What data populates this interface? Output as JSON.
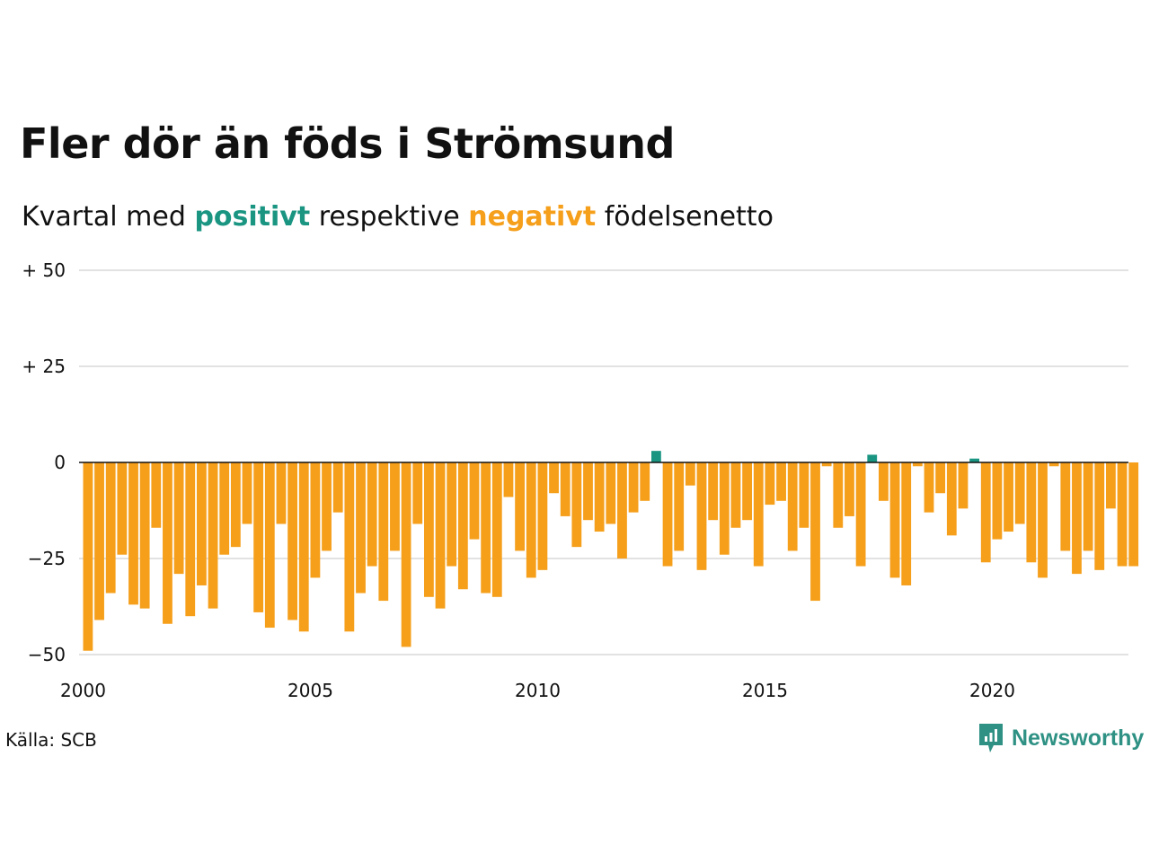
{
  "title": "Fler dör än föds i Strömsund",
  "subtitle": {
    "prefix": "Kvartal med",
    "positive_word": "positivt",
    "middle": "respektive",
    "negative_word": "negativt",
    "suffix": "födelsenetto"
  },
  "source": "Källa: SCB",
  "logo": {
    "text": "Newsworthy",
    "icon": "newsworthy-logo-icon"
  },
  "colors": {
    "positive": "#1a9582",
    "negative": "#f59f1b",
    "grid": "#e2e2e2",
    "zero_line": "#111111"
  },
  "chart_data": {
    "type": "bar",
    "title": "Fler dör än föds i Strömsund",
    "ylim": [
      -50,
      50
    ],
    "yticks": [
      {
        "value": 50,
        "label": "+ 50"
      },
      {
        "value": 25,
        "label": "+ 25"
      },
      {
        "value": 0,
        "label": "0"
      },
      {
        "value": -25,
        "label": "−25"
      },
      {
        "value": -50,
        "label": "−50"
      }
    ],
    "x_start": 2000,
    "xticks": [
      {
        "value": 2000,
        "label": "2000"
      },
      {
        "value": 2005,
        "label": "2005"
      },
      {
        "value": 2010,
        "label": "2010"
      },
      {
        "value": 2015,
        "label": "2015"
      },
      {
        "value": 2020,
        "label": "2020"
      }
    ],
    "grid": true,
    "categories": [
      "2000 Q1",
      "2000 Q2",
      "2000 Q3",
      "2000 Q4",
      "2001 Q1",
      "2001 Q2",
      "2001 Q3",
      "2001 Q4",
      "2002 Q1",
      "2002 Q2",
      "2002 Q3",
      "2002 Q4",
      "2003 Q1",
      "2003 Q2",
      "2003 Q3",
      "2003 Q4",
      "2004 Q1",
      "2004 Q2",
      "2004 Q3",
      "2004 Q4",
      "2005 Q1",
      "2005 Q2",
      "2005 Q3",
      "2005 Q4",
      "2006 Q1",
      "2006 Q2",
      "2006 Q3",
      "2006 Q4",
      "2007 Q1",
      "2007 Q2",
      "2007 Q3",
      "2007 Q4",
      "2008 Q1",
      "2008 Q2",
      "2008 Q3",
      "2008 Q4",
      "2009 Q1",
      "2009 Q2",
      "2009 Q3",
      "2009 Q4",
      "2010 Q1",
      "2010 Q2",
      "2010 Q3",
      "2010 Q4",
      "2011 Q1",
      "2011 Q2",
      "2011 Q3",
      "2011 Q4",
      "2012 Q1",
      "2012 Q2",
      "2012 Q3",
      "2012 Q4",
      "2013 Q1",
      "2013 Q2",
      "2013 Q3",
      "2013 Q4",
      "2014 Q1",
      "2014 Q2",
      "2014 Q3",
      "2014 Q4",
      "2015 Q1",
      "2015 Q2",
      "2015 Q3",
      "2015 Q4",
      "2016 Q1",
      "2016 Q2",
      "2016 Q3",
      "2016 Q4",
      "2017 Q1",
      "2017 Q2",
      "2017 Q3",
      "2017 Q4",
      "2018 Q1",
      "2018 Q2",
      "2018 Q3",
      "2018 Q4",
      "2019 Q1",
      "2019 Q2",
      "2019 Q3",
      "2019 Q4",
      "2020 Q1",
      "2020 Q2",
      "2020 Q3",
      "2020 Q4",
      "2021 Q1",
      "2021 Q2",
      "2021 Q3",
      "2021 Q4",
      "2022 Q1",
      "2022 Q2",
      "2022 Q3",
      "2022 Q4",
      "2023 Q1"
    ],
    "values": [
      -49,
      -41,
      -34,
      -24,
      -37,
      -38,
      -17,
      -42,
      -29,
      -40,
      -32,
      -38,
      -24,
      -22,
      -16,
      -39,
      -43,
      -16,
      -41,
      -44,
      -30,
      -23,
      -13,
      -44,
      -34,
      -27,
      -36,
      -23,
      -48,
      -16,
      -35,
      -38,
      -27,
      -33,
      -20,
      -34,
      -35,
      -9,
      -23,
      -30,
      -28,
      -8,
      -14,
      -22,
      -15,
      -18,
      -16,
      -25,
      -13,
      -10,
      3,
      -27,
      -23,
      -6,
      -28,
      -15,
      -24,
      -17,
      -15,
      -27,
      -11,
      -10,
      -23,
      -17,
      -36,
      -1,
      -17,
      -14,
      -27,
      2,
      -10,
      -30,
      -32,
      -1,
      -13,
      -8,
      -19,
      -12,
      1,
      -26,
      -20,
      -18,
      -16,
      -26,
      -30,
      -1,
      -23,
      -29,
      -23,
      -28,
      -12,
      -27,
      -27
    ]
  }
}
